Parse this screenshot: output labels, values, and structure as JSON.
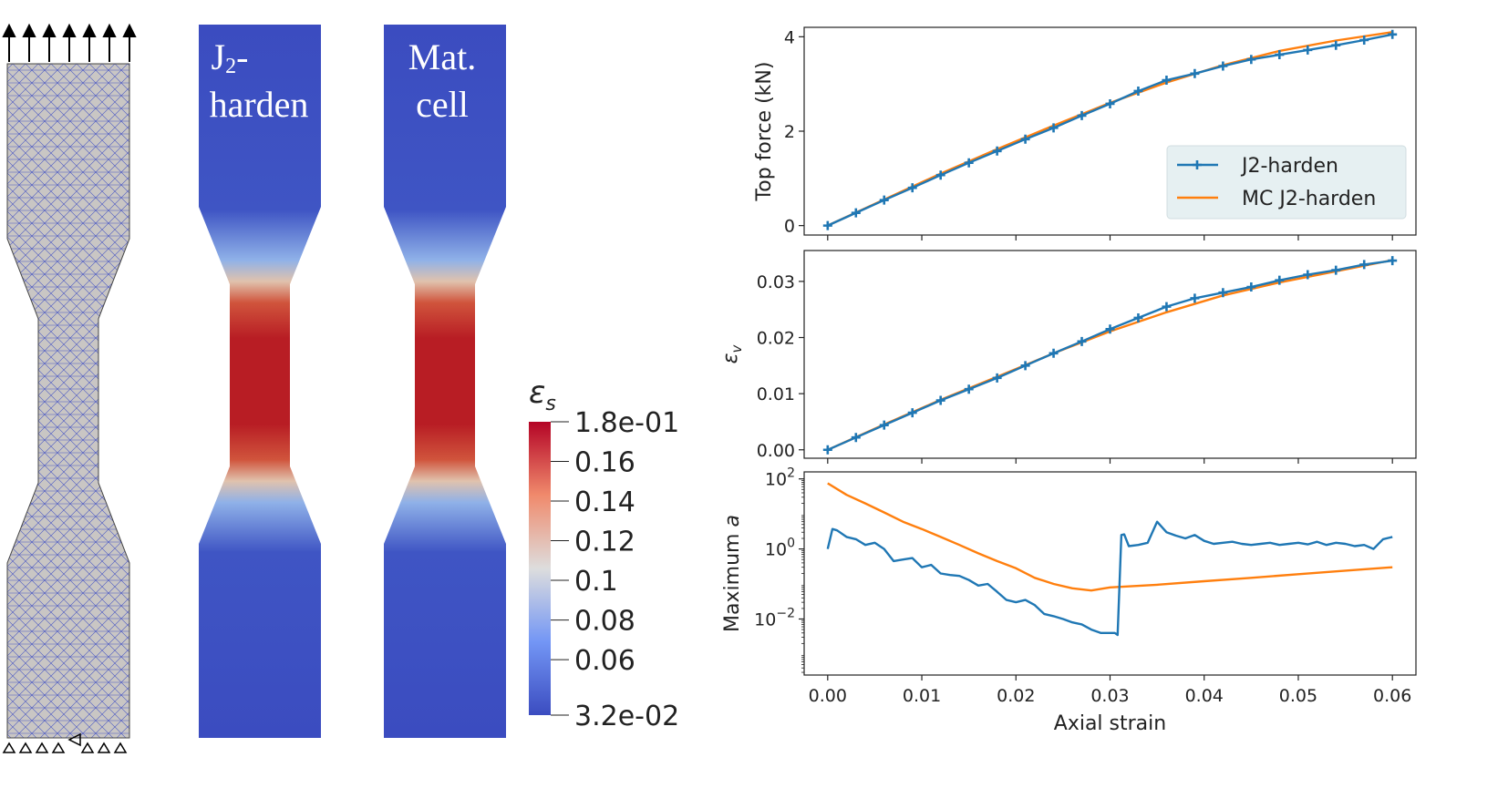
{
  "specimens": {
    "left_label_line1": "J",
    "left_label_sub": "2",
    "left_label_dash": "-",
    "left_label_line2": "harden",
    "right_label_line1": "Mat.",
    "right_label_line2": "cell"
  },
  "colorbar": {
    "title": "εs",
    "title_main": "ε",
    "title_sub": "s",
    "max_label": "1.8e-01",
    "min_label": "3.2e-02",
    "tick_labels": [
      "0.16",
      "0.14",
      "0.12",
      "0.1",
      "0.08",
      "0.06"
    ],
    "range": [
      0.032,
      0.18
    ],
    "colors": {
      "low": "#3b4cc0",
      "mid": "#dddddd",
      "high": "#b40426"
    }
  },
  "colors": {
    "j2": "#1f77b4",
    "mc": "#ff7f0e",
    "legend_bg": "#e6f0f2"
  },
  "chart_data": [
    {
      "type": "line",
      "id": "force",
      "ylabel": "Top force (kN)",
      "xlabel": "",
      "xlim": [
        -0.0025,
        0.0625
      ],
      "ylim": [
        -0.2,
        4.2
      ],
      "yticks": [
        0,
        2,
        4
      ],
      "ytick_labels": [
        "0",
        "2",
        "4"
      ],
      "legend": {
        "position": "center-right",
        "entries": [
          "J2-harden",
          "MC J2-harden"
        ]
      },
      "series": [
        {
          "name": "J2-harden",
          "marker": "plus",
          "x": [
            0,
            0.003,
            0.006,
            0.009,
            0.012,
            0.015,
            0.018,
            0.021,
            0.024,
            0.027,
            0.03,
            0.033,
            0.036,
            0.039,
            0.042,
            0.045,
            0.048,
            0.051,
            0.054,
            0.057,
            0.06
          ],
          "y": [
            0,
            0.27,
            0.54,
            0.8,
            1.07,
            1.33,
            1.58,
            1.83,
            2.07,
            2.33,
            2.58,
            2.85,
            3.08,
            3.22,
            3.38,
            3.52,
            3.62,
            3.72,
            3.82,
            3.93,
            4.05
          ]
        },
        {
          "name": "MC J2-harden",
          "marker": "none",
          "x": [
            0,
            0.006,
            0.012,
            0.018,
            0.024,
            0.03,
            0.036,
            0.042,
            0.048,
            0.054,
            0.06
          ],
          "y": [
            0,
            0.55,
            1.1,
            1.62,
            2.12,
            2.6,
            3.03,
            3.4,
            3.7,
            3.92,
            4.1
          ]
        }
      ]
    },
    {
      "type": "line",
      "id": "volstrain",
      "ylabel": "εv",
      "ylabel_main": "ε",
      "ylabel_sub": "v",
      "xlabel": "",
      "xlim": [
        -0.0025,
        0.0625
      ],
      "ylim": [
        -0.0015,
        0.0355
      ],
      "yticks": [
        0,
        0.01,
        0.02,
        0.03
      ],
      "ytick_labels": [
        "0.00",
        "0.01",
        "0.02",
        "0.03"
      ],
      "series": [
        {
          "name": "J2-harden",
          "marker": "plus",
          "x": [
            0,
            0.003,
            0.006,
            0.009,
            0.012,
            0.015,
            0.018,
            0.021,
            0.024,
            0.027,
            0.03,
            0.033,
            0.036,
            0.039,
            0.042,
            0.045,
            0.048,
            0.051,
            0.054,
            0.057,
            0.06
          ],
          "y": [
            0,
            0.0022,
            0.0044,
            0.0066,
            0.0088,
            0.0108,
            0.0128,
            0.015,
            0.0172,
            0.0193,
            0.0215,
            0.0235,
            0.0255,
            0.027,
            0.028,
            0.029,
            0.0302,
            0.0312,
            0.032,
            0.033,
            0.0337
          ]
        },
        {
          "name": "MC J2-harden",
          "marker": "none",
          "x": [
            0,
            0.006,
            0.012,
            0.018,
            0.024,
            0.03,
            0.036,
            0.042,
            0.048,
            0.054,
            0.06
          ],
          "y": [
            0,
            0.0045,
            0.0089,
            0.013,
            0.0172,
            0.0211,
            0.0245,
            0.0275,
            0.0298,
            0.0318,
            0.0338
          ]
        }
      ]
    },
    {
      "type": "line",
      "id": "maxa",
      "ylabel": "Maximum a",
      "ylabel_main": "Maximum ",
      "ylabel_italic": "a",
      "xlabel": "Axial strain",
      "yscale": "log",
      "xlim": [
        -0.0025,
        0.0625
      ],
      "ylim_log10": [
        -3.6,
        2.2
      ],
      "ytick_exponents": [
        2,
        0,
        -2
      ],
      "ytick_base": "10",
      "xticks": [
        0,
        0.01,
        0.02,
        0.03,
        0.04,
        0.05,
        0.06
      ],
      "xtick_labels": [
        "0.00",
        "0.01",
        "0.02",
        "0.03",
        "0.04",
        "0.05",
        "0.06"
      ],
      "series": [
        {
          "name": "J2-harden",
          "marker": "none",
          "x": [
            0,
            0.0005,
            0.001,
            0.002,
            0.003,
            0.004,
            0.005,
            0.006,
            0.007,
            0.008,
            0.009,
            0.01,
            0.011,
            0.012,
            0.013,
            0.014,
            0.015,
            0.016,
            0.017,
            0.018,
            0.019,
            0.02,
            0.021,
            0.022,
            0.023,
            0.024,
            0.025,
            0.026,
            0.027,
            0.028,
            0.029,
            0.0305,
            0.0308,
            0.0312,
            0.0315,
            0.032,
            0.033,
            0.034,
            0.035,
            0.036,
            0.037,
            0.038,
            0.039,
            0.04,
            0.041,
            0.042,
            0.043,
            0.044,
            0.045,
            0.046,
            0.047,
            0.048,
            0.049,
            0.05,
            0.051,
            0.052,
            0.053,
            0.054,
            0.055,
            0.056,
            0.057,
            0.058,
            0.059,
            0.06
          ],
          "y": [
            1.0,
            3.7,
            3.4,
            2.2,
            1.9,
            1.3,
            1.5,
            1.0,
            0.45,
            0.5,
            0.55,
            0.3,
            0.35,
            0.2,
            0.18,
            0.17,
            0.13,
            0.09,
            0.1,
            0.06,
            0.035,
            0.03,
            0.035,
            0.025,
            0.014,
            0.012,
            0.01,
            0.008,
            0.007,
            0.005,
            0.004,
            0.004,
            0.0035,
            2.5,
            2.6,
            1.2,
            1.3,
            1.5,
            6.0,
            3.0,
            2.4,
            2.0,
            2.5,
            1.7,
            1.4,
            1.5,
            1.6,
            1.4,
            1.3,
            1.4,
            1.5,
            1.3,
            1.4,
            1.5,
            1.35,
            1.6,
            1.3,
            1.5,
            1.4,
            1.2,
            1.3,
            1.0,
            1.9,
            2.2
          ]
        },
        {
          "name": "MC J2-harden",
          "marker": "none",
          "x": [
            0,
            0.002,
            0.004,
            0.006,
            0.008,
            0.01,
            0.012,
            0.014,
            0.016,
            0.018,
            0.02,
            0.022,
            0.024,
            0.026,
            0.028,
            0.03,
            0.035,
            0.04,
            0.045,
            0.05,
            0.055,
            0.06
          ],
          "y": [
            75,
            35,
            20,
            11,
            6,
            3.7,
            2.2,
            1.3,
            0.75,
            0.45,
            0.28,
            0.15,
            0.1,
            0.075,
            0.065,
            0.08,
            0.095,
            0.12,
            0.15,
            0.19,
            0.24,
            0.3
          ]
        }
      ]
    }
  ]
}
